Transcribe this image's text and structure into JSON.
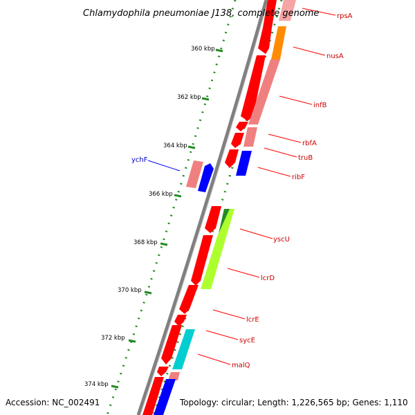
{
  "title": "Chlamydophila pneumoniae J138, complete genome",
  "footer": {
    "accession": "Accession: NC_002491",
    "topology": "Topology: circular; Length: 1,226,565 bp; Genes: 1,110"
  },
  "colors": {
    "backbone": "#808080",
    "tick": "#228B22",
    "label_forward": "#cc0000",
    "label_reverse": "#0000cc",
    "leader": "#ff0000",
    "leader_reverse": "#0000ff"
  },
  "tick_labels": [
    "360 kbp",
    "362 kbp",
    "364 kbp",
    "366 kbp",
    "368 kbp",
    "370 kbp",
    "372 kbp",
    "374 kbp"
  ],
  "genes": [
    {
      "name": "rpsA",
      "strand": "forward"
    },
    {
      "name": "nusA",
      "strand": "forward"
    },
    {
      "name": "infB",
      "strand": "forward"
    },
    {
      "name": "rbfA",
      "strand": "forward"
    },
    {
      "name": "truB",
      "strand": "forward"
    },
    {
      "name": "ribF",
      "strand": "forward"
    },
    {
      "name": "ychF",
      "strand": "reverse"
    },
    {
      "name": "yscU",
      "strand": "forward"
    },
    {
      "name": "lcrD",
      "strand": "forward"
    },
    {
      "name": "lcrE",
      "strand": "forward"
    },
    {
      "name": "sycE",
      "strand": "forward"
    },
    {
      "name": "malQ",
      "strand": "forward"
    }
  ]
}
